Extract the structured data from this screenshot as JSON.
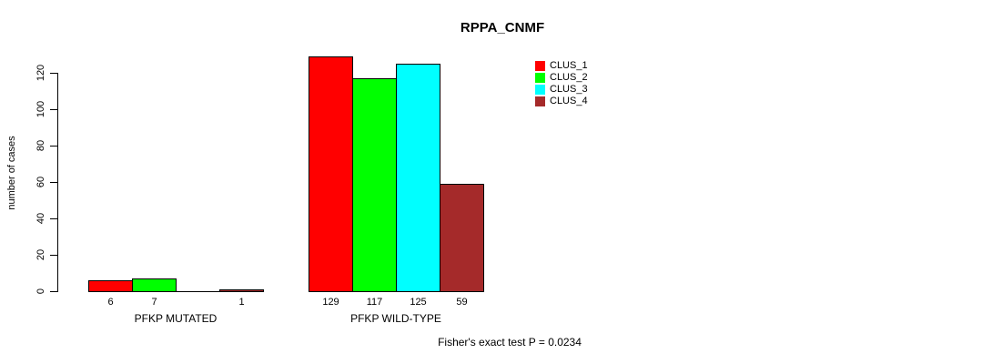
{
  "chart_data": {
    "type": "bar",
    "title": "RPPA_CNMF",
    "ylabel": "number of cases",
    "xlabel": "",
    "categories": [
      "PFKP MUTATED",
      "PFKP WILD-TYPE"
    ],
    "series": [
      {
        "name": "CLUS_1",
        "color": "#ff0000",
        "values": [
          6,
          129
        ]
      },
      {
        "name": "CLUS_2",
        "color": "#00ff00",
        "values": [
          7,
          117
        ]
      },
      {
        "name": "CLUS_3",
        "color": "#00ffff",
        "values": [
          0,
          125
        ]
      },
      {
        "name": "CLUS_4",
        "color": "#a52a2a",
        "values": [
          1,
          59
        ]
      }
    ],
    "bar_value_labels": [
      [
        "6",
        "7",
        "",
        "1"
      ],
      [
        "129",
        "117",
        "125",
        "59"
      ]
    ],
    "yticks": [
      0,
      20,
      40,
      60,
      80,
      100,
      120
    ],
    "ylim": [
      0,
      130
    ],
    "grid": false,
    "legend": {
      "position": "top-right",
      "entries": [
        "CLUS_1",
        "CLUS_2",
        "CLUS_3",
        "CLUS_4"
      ]
    },
    "annotation": "Fisher's exact test P = 0.0234",
    "axis_color": "#000000",
    "background": "#ffffff"
  }
}
